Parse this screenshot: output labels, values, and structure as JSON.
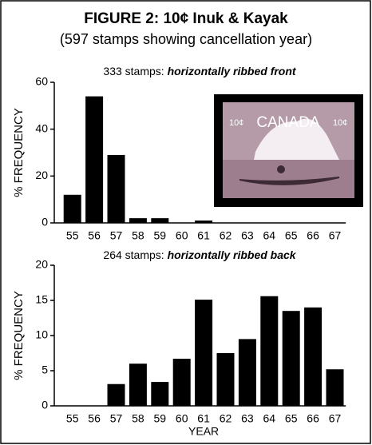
{
  "figure": {
    "title": "FIGURE 2: 10¢ Inuk & Kayak",
    "subtitle": "(597 stamps showing cancellation year)"
  },
  "stamp": {
    "country": "CANADA",
    "denomination": "10¢"
  },
  "chart_data": [
    {
      "type": "bar",
      "title": "333 stamps:",
      "title_emphasis": "horizontally ribbed front",
      "y_label": "% FREQUENCY",
      "categories": [
        "55",
        "56",
        "57",
        "58",
        "59",
        "60",
        "61",
        "62",
        "63",
        "64",
        "65",
        "66",
        "67"
      ],
      "values": [
        12,
        54,
        29,
        2,
        2,
        0,
        1,
        0,
        0,
        0,
        0,
        0,
        0
      ],
      "color": "#000000",
      "ylim": [
        0,
        60
      ],
      "yticks": [
        0,
        20,
        40,
        60
      ],
      "grid": false
    },
    {
      "type": "bar",
      "title": "264 stamps:",
      "title_emphasis": "horizontally ribbed back",
      "y_label": "% FREQUENCY",
      "x_label": "YEAR",
      "categories": [
        "55",
        "56",
        "57",
        "58",
        "59",
        "60",
        "61",
        "62",
        "63",
        "64",
        "65",
        "66",
        "67"
      ],
      "values": [
        0,
        0,
        3.1,
        6.0,
        3.4,
        6.7,
        15.1,
        7.5,
        9.5,
        15.6,
        13.5,
        14.0,
        5.2
      ],
      "color": "#000000",
      "ylim": [
        0,
        20
      ],
      "yticks": [
        0,
        5,
        10,
        15,
        20
      ],
      "grid": false
    }
  ]
}
